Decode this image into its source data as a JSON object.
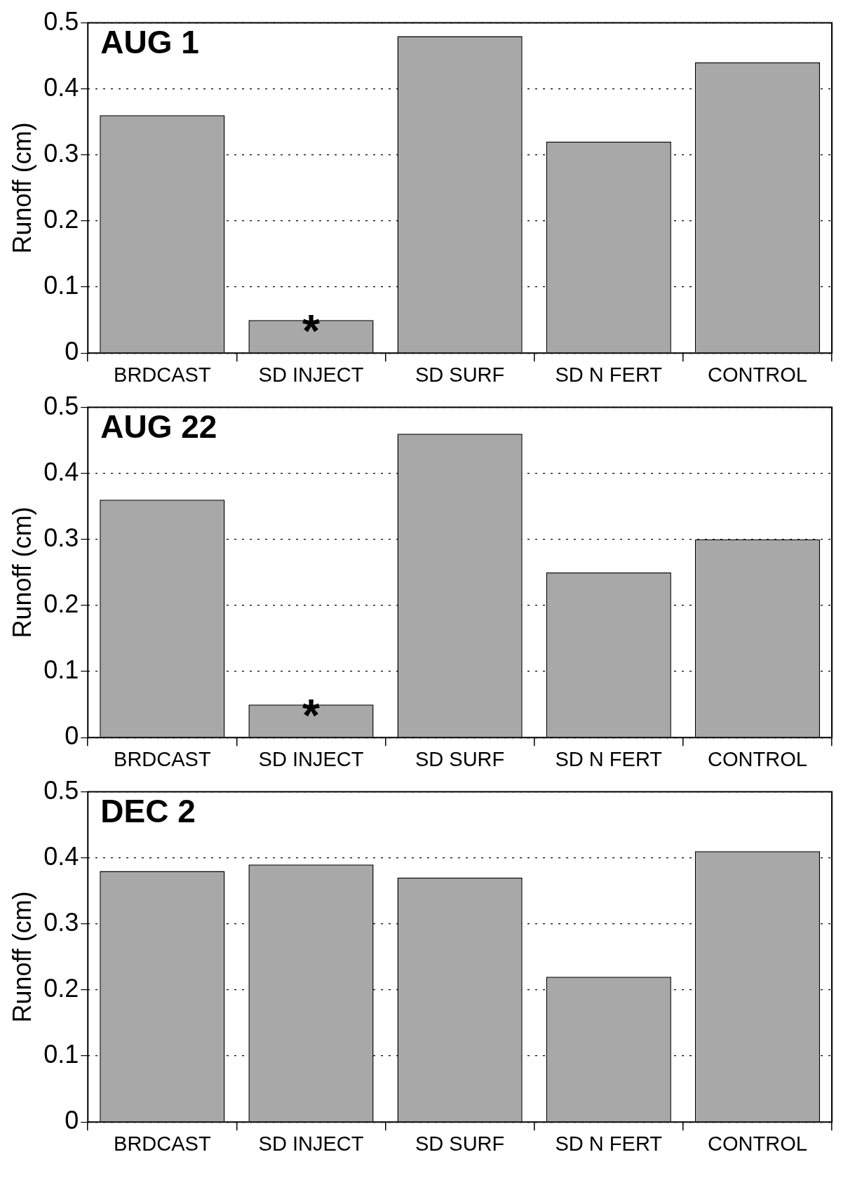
{
  "chart_data": [
    {
      "type": "bar",
      "title": "AUG 1",
      "ylabel": "Runoff (cm)",
      "categories": [
        "BRDCAST",
        "SD INJECT",
        "SD SURF",
        "SD N FERT",
        "CONTROL"
      ],
      "values": [
        0.36,
        0.05,
        0.48,
        0.32,
        0.44
      ],
      "color": "#a8a8a8",
      "ylim": [
        0,
        0.5
      ],
      "yticks": [
        0,
        0.1,
        0.2,
        0.3,
        0.4,
        0.5
      ],
      "grid": "y",
      "annotations": [
        {
          "text": "*",
          "x": "SD INJECT",
          "y": 0.05
        }
      ]
    },
    {
      "type": "bar",
      "title": "AUG 22",
      "ylabel": "Runoff (cm)",
      "categories": [
        "BRDCAST",
        "SD INJECT",
        "SD SURF",
        "SD N FERT",
        "CONTROL"
      ],
      "values": [
        0.36,
        0.05,
        0.46,
        0.25,
        0.3
      ],
      "color": "#a8a8a8",
      "ylim": [
        0,
        0.5
      ],
      "yticks": [
        0,
        0.1,
        0.2,
        0.3,
        0.4,
        0.5
      ],
      "grid": "y",
      "annotations": [
        {
          "text": "*",
          "x": "SD INJECT",
          "y": 0.05
        }
      ]
    },
    {
      "type": "bar",
      "title": "DEC 2",
      "ylabel": "Runoff (cm)",
      "categories": [
        "BRDCAST",
        "SD INJECT",
        "SD SURF",
        "SD N FERT",
        "CONTROL"
      ],
      "values": [
        0.38,
        0.39,
        0.37,
        0.22,
        0.41
      ],
      "color": "#a8a8a8",
      "ylim": [
        0,
        0.5
      ],
      "yticks": [
        0,
        0.1,
        0.2,
        0.3,
        0.4,
        0.5
      ],
      "grid": "y"
    }
  ]
}
